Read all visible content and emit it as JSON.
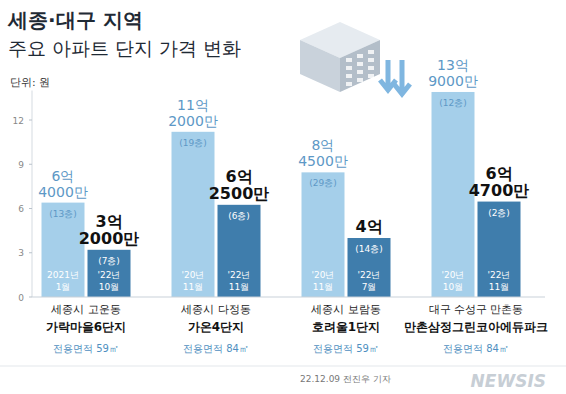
{
  "chart_data": {
    "type": "bar",
    "title": "세종·대구 지역",
    "subtitle": "주요 아파트 단지 가격 변화",
    "unit": "단위: 원",
    "categories": [
      "가락마을6단지",
      "가온4단지",
      "호려울1단지",
      "만촌삼정그린코아에듀파크"
    ],
    "category_regions": [
      "세종시 고운동",
      "세종시 다정동",
      "세종시 보람동",
      "대구 수성구 만촌동"
    ],
    "category_areas": [
      "전용면적 59㎡",
      "전용면적 84㎡",
      "전용면적 59㎡",
      "전용면적 84㎡"
    ],
    "series": [
      {
        "color": "#a5cfea",
        "values": [
          6.4,
          11.2,
          8.45,
          13.9
        ],
        "value_labels": [
          "6억 4000만",
          "11억 2000만",
          "8억 4500만",
          "13억 9000만"
        ],
        "floors": [
          "(13층)",
          "(19층)",
          "(29층)",
          "(12층)"
        ],
        "dates": [
          "2021년 1월",
          "'20년 11월",
          "'20년 11월",
          "'20년 10월"
        ]
      },
      {
        "color": "#3f7dac",
        "values": [
          3.2,
          6.25,
          4,
          6.47
        ],
        "value_labels": [
          "3억 2000만",
          "6억 2500만",
          "4억",
          "6억 4700만"
        ],
        "floors": [
          "(7층)",
          "(6층)",
          "(14층)",
          "(2층)"
        ],
        "dates": [
          "'22년 10월",
          "'22년 11월",
          "'22년 7월",
          "'22년 11월"
        ]
      }
    ],
    "ylim": [
      0,
      14
    ],
    "yticks": [
      0,
      3,
      6,
      9,
      12
    ],
    "grid": false,
    "data_labels": true,
    "credit": "22.12.09 전진우 기자",
    "watermark": "NEWSIS"
  }
}
